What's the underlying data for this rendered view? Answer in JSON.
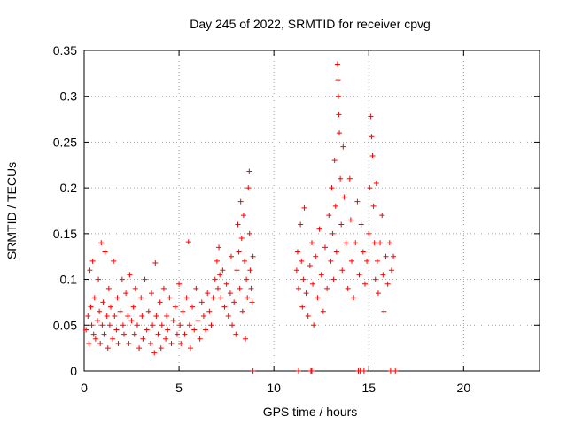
{
  "chart_data": {
    "type": "scatter",
    "title": "Day 245 of 2022, SRMTID for receiver cpvg",
    "xlabel": "GPS time / hours",
    "ylabel": "SRMTID / TECUs",
    "xlim": [
      0,
      24
    ],
    "ylim": [
      0,
      0.35
    ],
    "x_ticks": [
      0,
      5,
      10,
      15,
      20
    ],
    "x_tick_labels": [
      "0",
      "5",
      "10",
      "15",
      "20"
    ],
    "y_ticks": [
      0,
      0.05,
      0.1,
      0.15,
      0.2,
      0.25,
      0.3,
      0.35
    ],
    "y_tick_labels": [
      "0",
      "0.05",
      "0.1",
      "0.15",
      "0.2",
      "0.25",
      "0.3",
      "0.35"
    ],
    "grid": true,
    "marker": "+",
    "series_color": "#ff0000",
    "series": [
      {
        "name": "SRMTID",
        "points": [
          [
            0.1,
            0.045
          ],
          [
            0.2,
            0.06
          ],
          [
            0.25,
            0.03
          ],
          [
            0.3,
            0.11
          ],
          [
            0.35,
            0.07
          ],
          [
            0.4,
            0.05
          ],
          [
            0.45,
            0.12
          ],
          [
            0.5,
            0.04
          ],
          [
            0.55,
            0.08
          ],
          [
            0.6,
            0.035
          ],
          [
            0.7,
            0.055
          ],
          [
            0.75,
            0.1
          ],
          [
            0.8,
            0.065
          ],
          [
            0.85,
            0.03
          ],
          [
            0.9,
            0.14
          ],
          [
            0.95,
            0.05
          ],
          [
            1.0,
            0.075
          ],
          [
            1.05,
            0.04
          ],
          [
            1.1,
            0.13
          ],
          [
            1.2,
            0.06
          ],
          [
            1.25,
            0.025
          ],
          [
            1.3,
            0.09
          ],
          [
            1.35,
            0.05
          ],
          [
            1.4,
            0.07
          ],
          [
            1.5,
            0.035
          ],
          [
            1.55,
            0.12
          ],
          [
            1.6,
            0.06
          ],
          [
            1.7,
            0.045
          ],
          [
            1.75,
            0.08
          ],
          [
            1.8,
            0.03
          ],
          [
            1.9,
            0.065
          ],
          [
            2.0,
            0.1
          ],
          [
            2.05,
            0.05
          ],
          [
            2.1,
            0.04
          ],
          [
            2.2,
            0.085
          ],
          [
            2.3,
            0.06
          ],
          [
            2.35,
            0.03
          ],
          [
            2.4,
            0.105
          ],
          [
            2.5,
            0.055
          ],
          [
            2.6,
            0.07
          ],
          [
            2.65,
            0.04
          ],
          [
            2.7,
            0.09
          ],
          [
            2.8,
            0.05
          ],
          [
            2.9,
            0.025
          ],
          [
            3.0,
            0.08
          ],
          [
            3.05,
            0.06
          ],
          [
            3.1,
            0.035
          ],
          [
            3.2,
            0.1
          ],
          [
            3.3,
            0.045
          ],
          [
            3.4,
            0.065
          ],
          [
            3.5,
            0.03
          ],
          [
            3.55,
            0.085
          ],
          [
            3.6,
            0.05
          ],
          [
            3.7,
            0.02
          ],
          [
            3.75,
            0.118
          ],
          [
            3.8,
            0.06
          ],
          [
            3.9,
            0.04
          ],
          [
            4.0,
            0.075
          ],
          [
            4.05,
            0.025
          ],
          [
            4.1,
            0.05
          ],
          [
            4.2,
            0.09
          ],
          [
            4.3,
            0.035
          ],
          [
            4.35,
            0.06
          ],
          [
            4.4,
            0.045
          ],
          [
            4.5,
            0.08
          ],
          [
            4.6,
            0.03
          ],
          [
            4.7,
            0.055
          ],
          [
            4.8,
            0.07
          ],
          [
            4.9,
            0.04
          ],
          [
            5.0,
            0.095
          ],
          [
            5.05,
            0.05
          ],
          [
            5.1,
            0.03
          ],
          [
            5.2,
            0.065
          ],
          [
            5.3,
            0.04
          ],
          [
            5.4,
            0.08
          ],
          [
            5.5,
            0.141
          ],
          [
            5.55,
            0.05
          ],
          [
            5.6,
            0.025
          ],
          [
            5.7,
            0.07
          ],
          [
            5.8,
            0.045
          ],
          [
            5.9,
            0.09
          ],
          [
            6.0,
            0.055
          ],
          [
            6.1,
            0.035
          ],
          [
            6.2,
            0.075
          ],
          [
            6.3,
            0.06
          ],
          [
            6.4,
            0.045
          ],
          [
            6.5,
            0.085
          ],
          [
            6.6,
            0.065
          ],
          [
            6.7,
            0.05
          ],
          [
            6.8,
            0.08
          ],
          [
            6.9,
            0.1
          ],
          [
            7.0,
            0.12
          ],
          [
            7.05,
            0.09
          ],
          [
            7.1,
            0.135
          ],
          [
            7.15,
            0.105
          ],
          [
            7.2,
            0.08
          ],
          [
            7.3,
            0.11
          ],
          [
            7.4,
            0.07
          ],
          [
            7.5,
            0.095
          ],
          [
            7.6,
            0.06
          ],
          [
            7.7,
            0.085
          ],
          [
            7.75,
            0.125
          ],
          [
            7.8,
            0.05
          ],
          [
            7.9,
            0.075
          ],
          [
            8.0,
            0.04
          ],
          [
            8.05,
            0.11
          ],
          [
            8.1,
            0.16
          ],
          [
            8.15,
            0.13
          ],
          [
            8.2,
            0.09
          ],
          [
            8.25,
            0.185
          ],
          [
            8.3,
            0.145
          ],
          [
            8.35,
            0.065
          ],
          [
            8.4,
            0.17
          ],
          [
            8.45,
            0.12
          ],
          [
            8.5,
            0.035
          ],
          [
            8.55,
            0.1
          ],
          [
            8.6,
            0.08
          ],
          [
            8.65,
            0.2
          ],
          [
            8.7,
            0.218
          ],
          [
            8.72,
            0.15
          ],
          [
            8.75,
            0.11
          ],
          [
            8.8,
            0.09
          ],
          [
            8.85,
            0.075
          ],
          [
            8.9,
            0.125
          ],
          [
            11.2,
            0.11
          ],
          [
            11.25,
            0.13
          ],
          [
            11.3,
            0.09
          ],
          [
            11.4,
            0.16
          ],
          [
            11.45,
            0.12
          ],
          [
            11.5,
            0.07
          ],
          [
            11.55,
            0.1
          ],
          [
            11.6,
            0.178
          ],
          [
            11.7,
            0.085
          ],
          [
            11.8,
            0.06
          ],
          [
            11.9,
            0.115
          ],
          [
            12.0,
            0.14
          ],
          [
            12.05,
            0.095
          ],
          [
            12.1,
            0.05
          ],
          [
            12.2,
            0.125
          ],
          [
            12.3,
            0.08
          ],
          [
            12.4,
            0.155
          ],
          [
            12.5,
            0.105
          ],
          [
            12.6,
            0.065
          ],
          [
            12.7,
            0.135
          ],
          [
            12.8,
            0.09
          ],
          [
            12.9,
            0.17
          ],
          [
            13.0,
            0.12
          ],
          [
            13.05,
            0.2
          ],
          [
            13.1,
            0.15
          ],
          [
            13.15,
            0.1
          ],
          [
            13.2,
            0.23
          ],
          [
            13.25,
            0.18
          ],
          [
            13.3,
            0.13
          ],
          [
            13.35,
            0.335
          ],
          [
            13.38,
            0.318
          ],
          [
            13.4,
            0.3
          ],
          [
            13.42,
            0.28
          ],
          [
            13.45,
            0.26
          ],
          [
            13.5,
            0.21
          ],
          [
            13.55,
            0.16
          ],
          [
            13.6,
            0.11
          ],
          [
            13.65,
            0.245
          ],
          [
            13.7,
            0.19
          ],
          [
            13.8,
            0.14
          ],
          [
            13.9,
            0.09
          ],
          [
            14.0,
            0.21
          ],
          [
            14.05,
            0.165
          ],
          [
            14.1,
            0.12
          ],
          [
            14.2,
            0.08
          ],
          [
            14.3,
            0.14
          ],
          [
            14.4,
            0.185
          ],
          [
            14.5,
            0.105
          ],
          [
            14.6,
            0.16
          ],
          [
            14.7,
            0.13
          ],
          [
            14.8,
            0.095
          ],
          [
            14.9,
            0.12
          ],
          [
            15.0,
            0.15
          ],
          [
            15.05,
            0.2
          ],
          [
            15.1,
            0.278
          ],
          [
            15.15,
            0.256
          ],
          [
            15.2,
            0.235
          ],
          [
            15.25,
            0.18
          ],
          [
            15.3,
            0.14
          ],
          [
            15.35,
            0.1
          ],
          [
            15.4,
            0.205
          ],
          [
            15.45,
            0.12
          ],
          [
            15.5,
            0.085
          ],
          [
            15.6,
            0.14
          ],
          [
            15.7,
            0.17
          ],
          [
            15.75,
            0.105
          ],
          [
            15.8,
            0.065
          ],
          [
            15.9,
            0.125
          ],
          [
            16.0,
            0.095
          ],
          [
            16.1,
            0.14
          ],
          [
            16.2,
            0.11
          ],
          [
            16.3,
            0.125
          ],
          [
            8.9,
            0.0
          ],
          [
            11.3,
            0.0
          ],
          [
            11.95,
            0.0
          ],
          [
            12.0,
            0.0
          ],
          [
            14.45,
            0.0
          ],
          [
            14.55,
            0.0
          ],
          [
            14.75,
            0.0
          ],
          [
            16.15,
            0.0
          ],
          [
            16.4,
            0.0
          ]
        ]
      }
    ]
  }
}
